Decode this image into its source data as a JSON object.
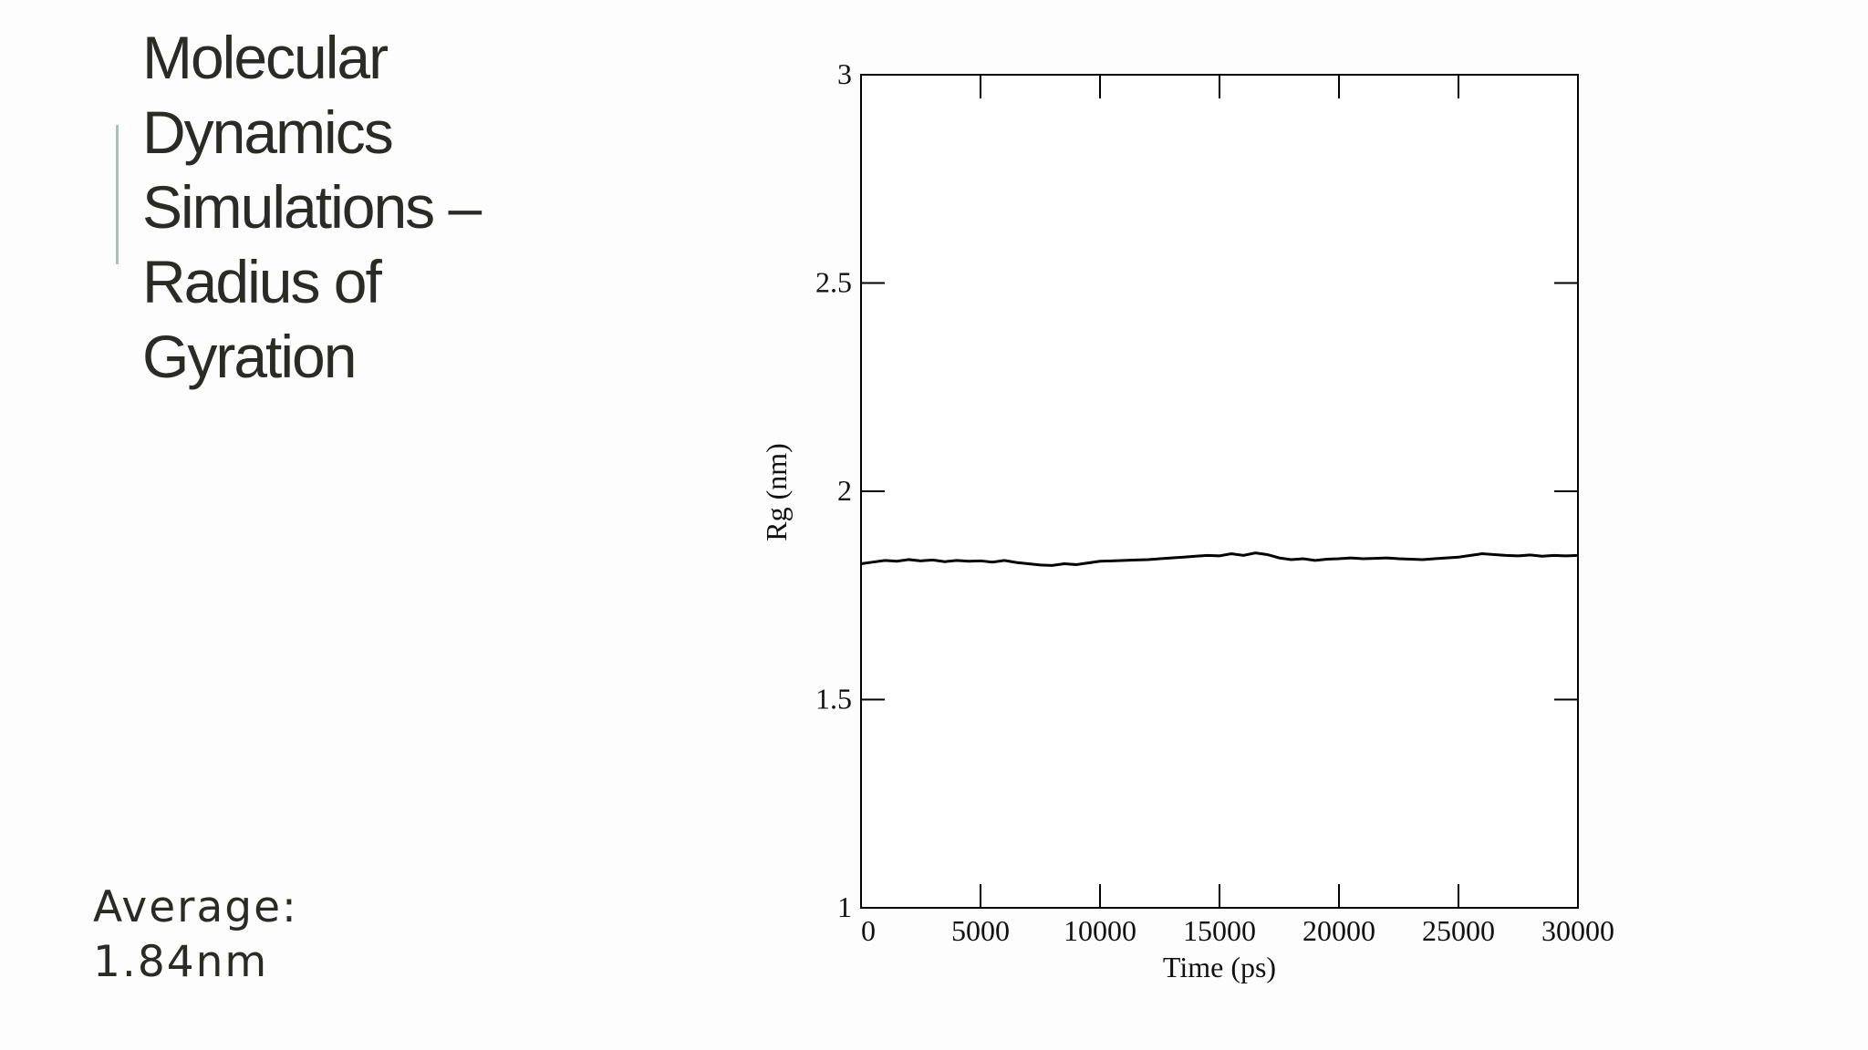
{
  "slide": {
    "title": "Molecular Dynamics Simulations – Radius of Gyration",
    "note": "Average: 1.84nm"
  },
  "chart_data": {
    "type": "line",
    "xlabel": "Time (ps)",
    "ylabel": "Rg (nm)",
    "xlim": [
      0,
      30000
    ],
    "xticks": [
      0,
      5000,
      10000,
      15000,
      20000,
      25000,
      30000
    ],
    "ylim": [
      1,
      3
    ],
    "yticks": [
      1,
      1.5,
      2,
      2.5,
      3
    ],
    "x": [
      0,
      500,
      1000,
      1500,
      2000,
      2500,
      3000,
      3500,
      4000,
      4500,
      5000,
      5500,
      6000,
      6500,
      7000,
      7500,
      8000,
      8500,
      9000,
      9500,
      10000,
      10500,
      11000,
      11500,
      12000,
      12500,
      13000,
      13500,
      14000,
      14500,
      15000,
      15500,
      16000,
      16500,
      17000,
      17500,
      18000,
      18500,
      19000,
      19500,
      20000,
      20500,
      21000,
      21500,
      22000,
      22500,
      23000,
      23500,
      24000,
      24500,
      25000,
      25500,
      26000,
      26500,
      27000,
      27500,
      28000,
      28500,
      29000,
      29500,
      30000
    ],
    "series": [
      {
        "color": "#000000",
        "values": [
          1.826,
          1.83,
          1.834,
          1.832,
          1.836,
          1.833,
          1.835,
          1.831,
          1.834,
          1.832,
          1.833,
          1.83,
          1.834,
          1.829,
          1.826,
          1.823,
          1.822,
          1.826,
          1.824,
          1.828,
          1.832,
          1.833,
          1.834,
          1.835,
          1.836,
          1.838,
          1.84,
          1.842,
          1.844,
          1.846,
          1.845,
          1.85,
          1.846,
          1.852,
          1.848,
          1.84,
          1.836,
          1.838,
          1.834,
          1.837,
          1.838,
          1.84,
          1.838,
          1.839,
          1.84,
          1.838,
          1.837,
          1.836,
          1.838,
          1.84,
          1.842,
          1.846,
          1.85,
          1.848,
          1.846,
          1.845,
          1.847,
          1.844,
          1.846,
          1.845,
          1.846
        ]
      }
    ]
  }
}
